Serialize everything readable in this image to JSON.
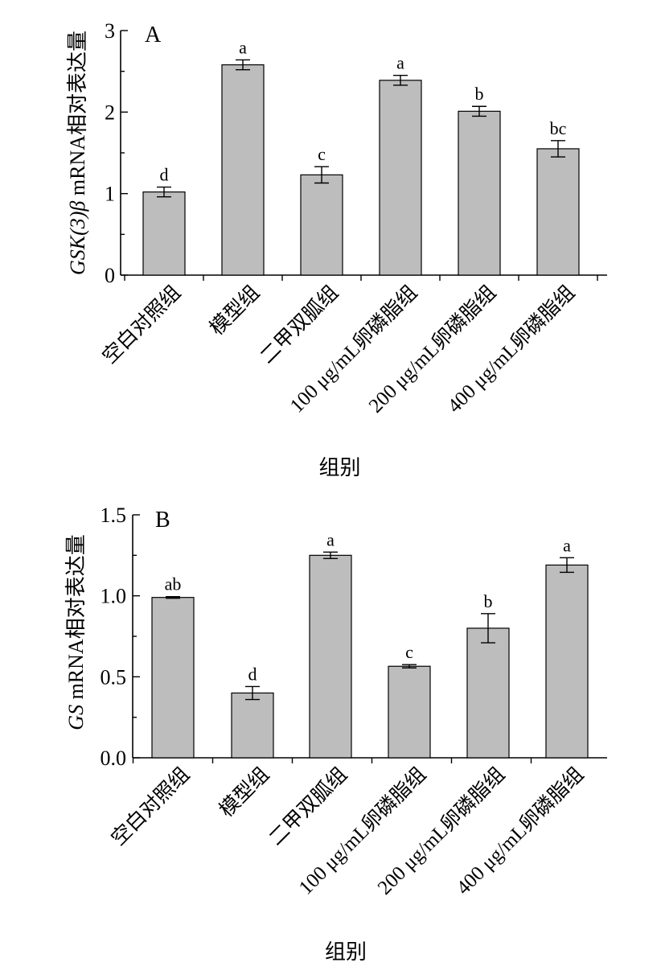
{
  "chart_data": [
    {
      "type": "bar",
      "panel_label": "A",
      "categories": [
        "空白对照组",
        "模型组",
        "二甲双胍组",
        "100 μg/mL卵磷脂组",
        "200 μg/mL卵磷脂组",
        "400 μg/mL卵磷脂组"
      ],
      "values": [
        1.02,
        2.58,
        1.23,
        2.39,
        2.01,
        1.55
      ],
      "errors": [
        0.06,
        0.06,
        0.1,
        0.06,
        0.06,
        0.1
      ],
      "significance": [
        "d",
        "a",
        "c",
        "a",
        "b",
        "bc"
      ],
      "ylabel_italic": "GSK(3)β",
      "ylabel_rest": " mRNA相对表达量",
      "xlabel": "组别",
      "ylim": [
        0,
        3
      ],
      "yticks": [
        "0",
        "1",
        "2",
        "3"
      ],
      "grid": false
    },
    {
      "type": "bar",
      "panel_label": "B",
      "categories": [
        "空白对照组",
        "模型组",
        "二甲双胍组",
        "100 μg/mL卵磷脂组",
        "200 μg/mL卵磷脂组",
        "400 μg/mL卵磷脂组"
      ],
      "values": [
        0.99,
        0.4,
        1.25,
        0.565,
        0.8,
        1.19
      ],
      "errors": [
        0.005,
        0.04,
        0.02,
        0.01,
        0.09,
        0.045
      ],
      "significance": [
        "ab",
        "d",
        "a",
        "c",
        "b",
        "a"
      ],
      "ylabel_italic": "GS",
      "ylabel_rest": " mRNA相对表达量",
      "xlabel": "组别",
      "ylim": [
        0,
        1.5
      ],
      "yticks": [
        "0.0",
        "0.5",
        "1.0",
        "1.5"
      ],
      "grid": false
    }
  ]
}
